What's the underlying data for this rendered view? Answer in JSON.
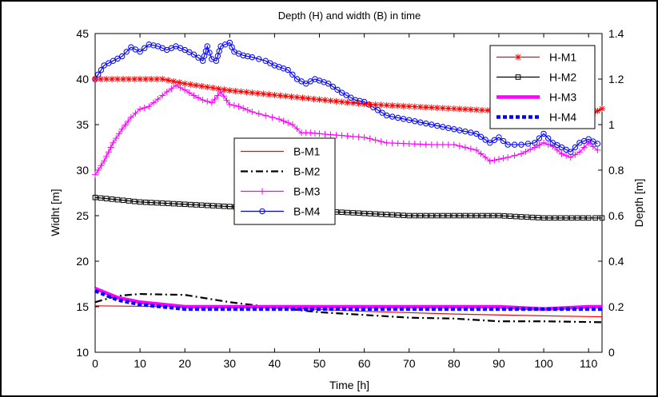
{
  "chart_data": {
    "type": "line",
    "title": "Depth (H) and width (B) in time",
    "xlabel": "Time [h]",
    "ylabel_left": "Widht [m]",
    "ylabel_right": "Depth [m]",
    "xlim": [
      0,
      113
    ],
    "ylim_left": [
      10,
      45
    ],
    "ylim_right": [
      0,
      1.4
    ],
    "xticks": [
      "0",
      "10",
      "20",
      "30",
      "40",
      "50",
      "60",
      "70",
      "80",
      "90",
      "100",
      "110"
    ],
    "yticks_left": [
      "10",
      "15",
      "20",
      "25",
      "30",
      "35",
      "40",
      "45"
    ],
    "yticks_right": [
      "0",
      "0.2",
      "0.4",
      "0.6",
      "0.8",
      "1",
      "1.2",
      "1.4"
    ],
    "grid": false,
    "legend_widths": "center-left",
    "legend_depths": "top-right",
    "width_series": [
      {
        "name": "B-M1",
        "color": "#ff0000",
        "style": "solid",
        "marker": "none",
        "x": [
          0,
          20,
          40,
          60,
          80,
          100,
          113
        ],
        "y": [
          15.1,
          15.0,
          14.9,
          14.5,
          14.2,
          14.0,
          13.9
        ]
      },
      {
        "name": "B-M2",
        "color": "#000000",
        "style": "dashdot",
        "marker": "none",
        "x": [
          0,
          5,
          10,
          20,
          30,
          40,
          50,
          60,
          70,
          80,
          90,
          100,
          113
        ],
        "y": [
          15.5,
          16.2,
          16.4,
          16.3,
          15.5,
          14.9,
          14.4,
          14.1,
          13.8,
          13.7,
          13.4,
          13.4,
          13.3
        ]
      },
      {
        "name": "B-M3",
        "color": "#ff00ff",
        "style": "solid",
        "marker": "plus",
        "x": [
          0,
          2,
          4,
          6,
          8,
          10,
          12,
          14,
          16,
          18,
          20,
          22,
          24,
          26,
          28,
          30,
          32,
          35,
          38,
          41,
          44,
          46,
          48,
          50,
          55,
          60,
          65,
          70,
          75,
          80,
          85,
          88,
          90,
          92,
          95,
          98,
          100,
          102,
          104,
          106,
          108,
          110,
          112
        ],
        "y": [
          29.5,
          31.0,
          33.0,
          34.5,
          35.8,
          36.7,
          37.0,
          37.8,
          38.6,
          39.3,
          38.8,
          38.2,
          37.7,
          37.4,
          38.6,
          37.2,
          37.0,
          36.4,
          36.0,
          35.6,
          35.0,
          34.1,
          34.1,
          34.0,
          33.8,
          33.6,
          33.0,
          32.9,
          32.8,
          32.8,
          32.2,
          31.0,
          31.2,
          31.4,
          31.8,
          32.5,
          33.0,
          32.6,
          31.8,
          31.4,
          32.0,
          33.0,
          32.2
        ]
      },
      {
        "name": "B-M4",
        "color": "#0000ff",
        "style": "solid",
        "marker": "circle",
        "x": [
          0,
          2,
          4,
          6,
          8,
          10,
          12,
          14,
          16,
          18,
          20,
          22,
          24,
          25,
          26,
          27,
          28,
          30,
          31,
          33,
          35,
          38,
          40,
          43,
          45,
          47,
          49,
          52,
          55,
          58,
          60,
          65,
          70,
          75,
          80,
          85,
          88,
          90,
          92,
          95,
          98,
          100,
          102,
          104,
          106,
          108,
          110,
          112
        ],
        "y": [
          40.0,
          41.5,
          42.0,
          42.5,
          43.5,
          43.0,
          43.8,
          43.6,
          43.2,
          43.6,
          43.2,
          42.7,
          42.0,
          43.6,
          42.2,
          42.0,
          43.6,
          44.0,
          43.0,
          42.6,
          42.4,
          42.0,
          41.5,
          41.0,
          40.0,
          39.5,
          40.0,
          39.5,
          38.5,
          37.7,
          37.5,
          36.0,
          35.5,
          35.0,
          34.5,
          34.0,
          33.0,
          33.6,
          32.8,
          32.8,
          33.0,
          34.0,
          33.0,
          32.5,
          32.0,
          33.0,
          33.4,
          32.9
        ]
      }
    ],
    "depth_series": [
      {
        "name": "H-M1",
        "color": "#ff0000",
        "style": "solid",
        "marker": "star",
        "x": [
          0,
          5,
          10,
          15,
          20,
          30,
          40,
          50,
          60,
          70,
          80,
          90,
          100,
          105,
          110,
          113
        ],
        "y": [
          1.2,
          1.2,
          1.2,
          1.2,
          1.18,
          1.15,
          1.13,
          1.11,
          1.09,
          1.08,
          1.07,
          1.06,
          1.06,
          1.05,
          1.04,
          1.07
        ]
      },
      {
        "name": "H-M2",
        "color": "#000000",
        "style": "solid",
        "marker": "square",
        "x": [
          0,
          10,
          20,
          30,
          40,
          50,
          60,
          70,
          80,
          90,
          100,
          110,
          113
        ],
        "y": [
          0.68,
          0.66,
          0.65,
          0.64,
          0.63,
          0.62,
          0.61,
          0.6,
          0.6,
          0.6,
          0.59,
          0.59,
          0.59
        ]
      },
      {
        "name": "H-M3",
        "color": "#ff00ff",
        "style": "thick",
        "marker": "none",
        "x": [
          0,
          5,
          10,
          20,
          30,
          40,
          50,
          60,
          70,
          80,
          90,
          100,
          110,
          113
        ],
        "y": [
          0.28,
          0.24,
          0.22,
          0.2,
          0.2,
          0.2,
          0.2,
          0.2,
          0.2,
          0.2,
          0.2,
          0.19,
          0.2,
          0.2
        ]
      },
      {
        "name": "H-M4",
        "color": "#0000ff",
        "style": "dotted",
        "marker": "none",
        "x": [
          0,
          5,
          10,
          20,
          30,
          40,
          50,
          60,
          70,
          80,
          90,
          100,
          110,
          113
        ],
        "y": [
          0.27,
          0.23,
          0.21,
          0.19,
          0.19,
          0.19,
          0.19,
          0.19,
          0.19,
          0.19,
          0.19,
          0.19,
          0.19,
          0.19
        ]
      }
    ]
  }
}
